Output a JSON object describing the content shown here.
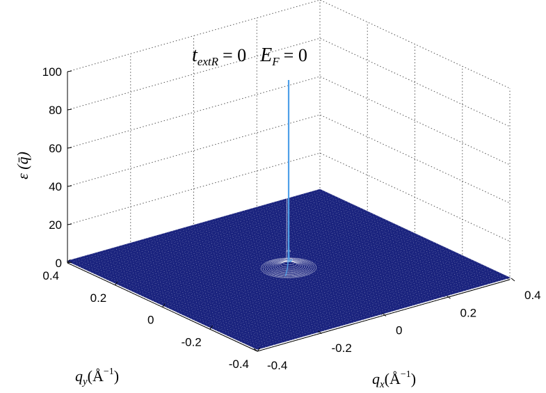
{
  "chart_data": {
    "type": "surface",
    "title_parts": {
      "t_base": "t",
      "t_sub": "extR",
      "eq1": "= 0",
      "e_base": "E",
      "e_sub": "F",
      "eq2": "= 0"
    },
    "zlabel": "ε (q̄)",
    "xlabel_base": "q",
    "xlabel_sub": "x",
    "xlabel_unit": "(Å",
    "xlabel_exp": "−1",
    "ylabel_base": "q",
    "ylabel_sub": "y",
    "ylabel_unit": "(Å",
    "ylabel_exp": "−1",
    "xlim": [
      -0.4,
      0.4
    ],
    "ylim": [
      -0.4,
      0.4
    ],
    "zlim": [
      0,
      100
    ],
    "x_ticks": [
      "-0.4",
      "-0.2",
      "0",
      "0.2",
      "0.4"
    ],
    "y_ticks": [
      "-0.4",
      "-0.2",
      "0",
      "0.2",
      "0.4"
    ],
    "z_ticks": [
      "0",
      "20",
      "40",
      "60",
      "80",
      "100"
    ],
    "peak": {
      "x": 0,
      "y": 0,
      "z": 100
    },
    "baseline": 1,
    "grid": true,
    "colors": {
      "surface": "#1a237e",
      "mesh": "#ffffff",
      "peak": "#4f9fe8"
    }
  }
}
